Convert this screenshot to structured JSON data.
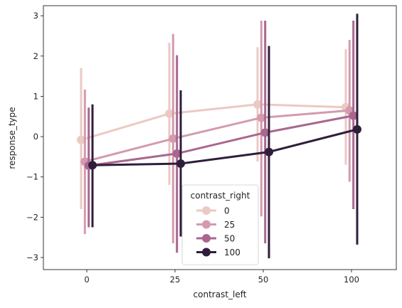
{
  "chart_data": {
    "type": "line",
    "xlabel": "contrast_left",
    "ylabel": "response_type",
    "categories": [
      "0",
      "25",
      "50",
      "100"
    ],
    "ylim": [
      -3.3,
      3.25
    ],
    "yticks": [
      "3",
      "2",
      "1",
      "0",
      "−1",
      "−2",
      "−3"
    ],
    "ytick_values": [
      3,
      2,
      1,
      0,
      -1,
      -2,
      -3
    ],
    "grid": false,
    "legend": {
      "title": "contrast_right",
      "placement": "lower-center"
    },
    "series": [
      {
        "name": "0",
        "color": "#ebcac3",
        "values": [
          -0.08,
          0.57,
          0.8,
          0.73
        ],
        "err_low": [
          -1.8,
          -1.2,
          -0.62,
          -0.7
        ],
        "err_high": [
          1.7,
          2.33,
          2.22,
          2.17
        ]
      },
      {
        "name": "25",
        "color": "#d49aae",
        "values": [
          -0.62,
          -0.05,
          0.47,
          0.65
        ],
        "err_low": [
          -2.42,
          -2.65,
          -1.98,
          -1.12
        ],
        "err_high": [
          1.17,
          2.55,
          2.88,
          2.4
        ]
      },
      {
        "name": "50",
        "color": "#a9678e",
        "values": [
          -0.72,
          -0.42,
          0.1,
          0.52
        ],
        "err_low": [
          -2.25,
          -2.88,
          -2.65,
          -1.8
        ],
        "err_high": [
          0.72,
          2.02,
          2.88,
          2.88
        ]
      },
      {
        "name": "100",
        "color": "#2e1e3b",
        "values": [
          -0.71,
          -0.67,
          -0.38,
          0.18
        ],
        "err_low": [
          -2.25,
          -2.48,
          -3.02,
          -2.68
        ],
        "err_high": [
          0.8,
          1.15,
          2.25,
          3.05
        ]
      }
    ]
  }
}
